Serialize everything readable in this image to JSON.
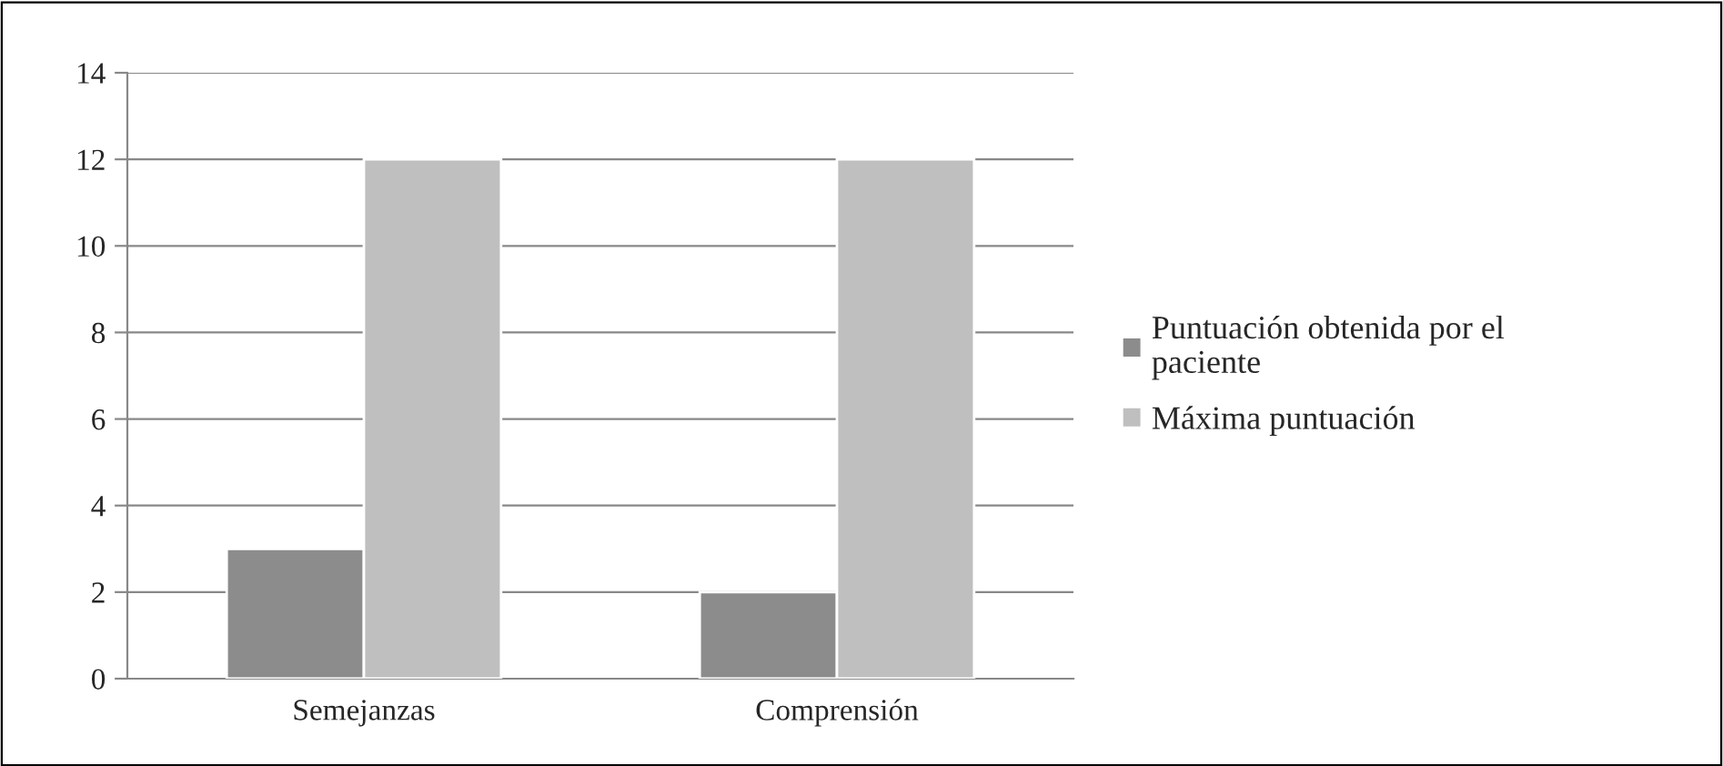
{
  "chart_data": {
    "type": "bar",
    "categories": [
      "Semejanzas",
      "Comprensión"
    ],
    "series": [
      {
        "name": "Puntuación obtenida por el\npaciente",
        "color": "#8c8c8c",
        "values": [
          3,
          2
        ]
      },
      {
        "name": "Máxima puntuación",
        "color": "#bfbfbf",
        "values": [
          12,
          12
        ]
      }
    ],
    "ylim": [
      0,
      14
    ],
    "yticks": [
      0,
      2,
      4,
      6,
      8,
      10,
      12,
      14
    ],
    "grid": "y",
    "legend": "right"
  }
}
